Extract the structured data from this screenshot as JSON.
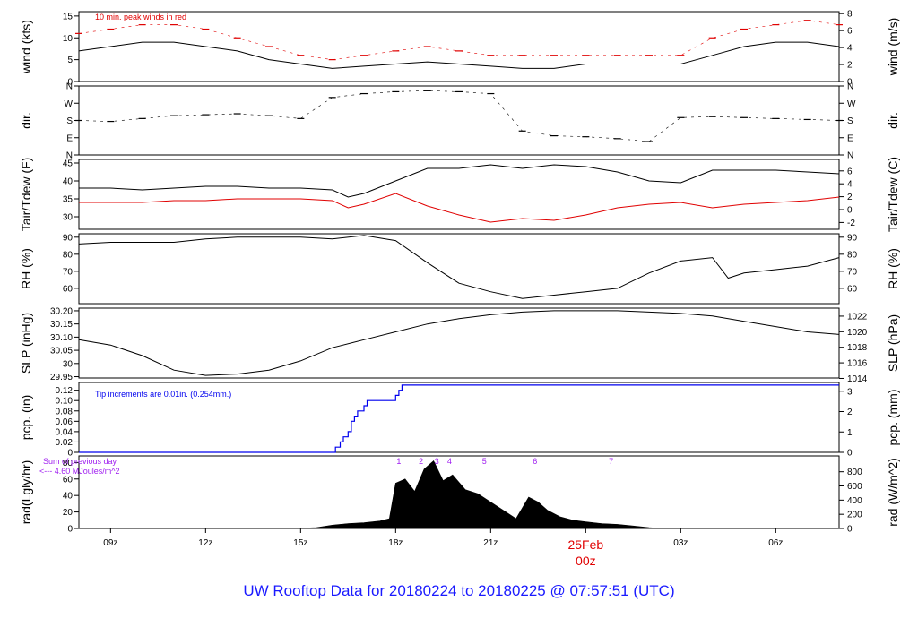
{
  "footer": {
    "title": "UW Rooftop Data for 20180224  to  20180225 @ 07:57:51  (UTC)"
  },
  "colors": {
    "black": "#000000",
    "red": "#e00000",
    "blue": "#0000ee",
    "purple": "#a020f0",
    "footer_blue": "#1a1aff"
  },
  "chart_data": {
    "type": "line",
    "x_axis": {
      "tick_labels": [
        "09z",
        "12z",
        "15z",
        "18z",
        "21z",
        "00z",
        "03z",
        "06z"
      ],
      "tick_hours": [
        9,
        12,
        15,
        18,
        21,
        24,
        27,
        30
      ],
      "range_hours": [
        8,
        32
      ],
      "date_marker": {
        "label": "25Feb",
        "sub": "00z"
      },
      "hour_unit": "hours UTC since 2018-02-24 00z"
    },
    "panels": [
      {
        "id": "wind",
        "ylabel": "wind (kts)",
        "ylabel_right": "wind (m/s)",
        "yticks": [
          0,
          5,
          10,
          15
        ],
        "yticks_right": [
          0,
          2,
          4,
          6,
          8
        ],
        "ylim": [
          0,
          16
        ],
        "right_scale": 0.5144,
        "annotation": "10 min. peak winds in red",
        "series": [
          {
            "color": "#000000",
            "x": [
              8,
              9,
              10,
              11,
              12,
              13,
              14,
              15,
              16,
              17,
              18,
              19,
              20,
              21,
              22,
              23,
              24,
              25,
              26,
              27,
              28,
              29,
              30,
              31,
              32
            ],
            "y": [
              7,
              8,
              9,
              9,
              8,
              7,
              5,
              4,
              3,
              3.5,
              4,
              4.5,
              4,
              3.5,
              3,
              3,
              4,
              4,
              4,
              4,
              6,
              8,
              9,
              9,
              8
            ]
          },
          {
            "color": "#e00000",
            "style": "dashes",
            "x": [
              8,
              9,
              10,
              11,
              12,
              13,
              14,
              15,
              16,
              17,
              18,
              19,
              20,
              21,
              22,
              23,
              24,
              25,
              26,
              27,
              28,
              29,
              30,
              31,
              32
            ],
            "y": [
              11,
              12,
              13,
              13,
              12,
              10,
              8,
              6,
              5,
              6,
              7,
              8,
              7,
              6,
              6,
              6,
              6,
              6,
              6,
              6,
              10,
              12,
              13,
              14,
              13
            ]
          }
        ]
      },
      {
        "id": "dir",
        "ylabel": "dir.",
        "ylabel_right": "dir.",
        "yticks": [
          "N",
          "E",
          "S",
          "W",
          "N"
        ],
        "yticks_right": [
          "N",
          "E",
          "S",
          "W",
          "N"
        ],
        "ylim": [
          0,
          360
        ],
        "series": [
          {
            "color": "#000000",
            "style": "dashes",
            "x": [
              8,
              9,
              10,
              11,
              12,
              13,
              14,
              15,
              16,
              17,
              18,
              19,
              20,
              21,
              22,
              23,
              24,
              25,
              26,
              27,
              28,
              29,
              30,
              31,
              32
            ],
            "y": [
              180,
              175,
              190,
              205,
              210,
              215,
              205,
              190,
              300,
              320,
              330,
              335,
              330,
              320,
              125,
              100,
              95,
              85,
              70,
              195,
              200,
              195,
              190,
              185,
              180
            ]
          }
        ]
      },
      {
        "id": "temp",
        "ylabel": "Tair/Tdew (F)",
        "ylabel_right": "Tair/Tdew (C)",
        "yticks": [
          30,
          35,
          40,
          45
        ],
        "yticks_right": [
          -2,
          0,
          2,
          4,
          6
        ],
        "ylim": [
          26.5,
          46
        ],
        "right_offset": 32,
        "right_scale": 0.5556,
        "series": [
          {
            "color": "#000000",
            "x": [
              8,
              9,
              10,
              11,
              12,
              13,
              14,
              15,
              16,
              16.5,
              17,
              18,
              19,
              20,
              21,
              22,
              23,
              24,
              25,
              26,
              27,
              28,
              29,
              30,
              31,
              32
            ],
            "y": [
              38,
              38,
              37.5,
              38,
              38.5,
              38.5,
              38,
              38,
              37.5,
              35.5,
              36.5,
              40,
              43.5,
              43.5,
              44.5,
              43.5,
              44.5,
              44,
              42.5,
              40,
              39.5,
              43,
              43,
              43,
              42.5,
              42
            ]
          },
          {
            "color": "#e00000",
            "x": [
              8,
              9,
              10,
              11,
              12,
              13,
              14,
              15,
              16,
              16.5,
              17,
              18,
              19,
              20,
              21,
              22,
              23,
              24,
              25,
              26,
              27,
              28,
              29,
              30,
              31,
              32
            ],
            "y": [
              34,
              34,
              34,
              34.5,
              34.5,
              35,
              35,
              35,
              34.5,
              32.5,
              33.5,
              36.5,
              33,
              30.5,
              28.5,
              29.5,
              29,
              30.5,
              32.5,
              33.5,
              34,
              32.5,
              33.5,
              34,
              34.5,
              35.5
            ]
          }
        ]
      },
      {
        "id": "rh",
        "ylabel": "RH (%)",
        "ylabel_right": "RH (%)",
        "yticks": [
          60,
          70,
          80,
          90
        ],
        "yticks_right": [
          60,
          70,
          80,
          90
        ],
        "ylim": [
          51,
          92
        ],
        "series": [
          {
            "color": "#000000",
            "x": [
              8,
              9,
              10,
              11,
              12,
              13,
              14,
              15,
              16,
              17,
              18,
              19,
              20,
              21,
              22,
              23,
              24,
              25,
              26,
              27,
              28,
              28.5,
              29,
              30,
              31,
              32
            ],
            "y": [
              86,
              87,
              87,
              87,
              89,
              90,
              90,
              90,
              89,
              91,
              88,
              75,
              63,
              58,
              54,
              56,
              58,
              60,
              69,
              76,
              78,
              66,
              69,
              71,
              73,
              78
            ]
          }
        ]
      },
      {
        "id": "slp",
        "ylabel": "SLP (inHg)",
        "ylabel_right": "SLP (hPa)",
        "yticks": [
          29.95,
          30.0,
          30.05,
          30.1,
          30.15,
          30.2
        ],
        "yticks_right": [
          1014,
          1016,
          1018,
          1020,
          1022
        ],
        "ylim": [
          29.945,
          30.21
        ],
        "right_scale": 33.8639,
        "series": [
          {
            "color": "#000000",
            "x": [
              8,
              9,
              10,
              11,
              12,
              13,
              14,
              15,
              16,
              17,
              18,
              19,
              20,
              21,
              22,
              23,
              24,
              25,
              26,
              27,
              28,
              29,
              30,
              31,
              32
            ],
            "y": [
              30.09,
              30.07,
              30.03,
              29.975,
              29.955,
              29.96,
              29.975,
              30.01,
              30.06,
              30.09,
              30.12,
              30.15,
              30.17,
              30.185,
              30.195,
              30.2,
              30.2,
              30.2,
              30.195,
              30.19,
              30.18,
              30.16,
              30.14,
              30.12,
              30.11
            ]
          }
        ]
      },
      {
        "id": "pcp",
        "ylabel": "pcp. (in)",
        "ylabel_right": "pcp. (mm)",
        "yticks": [
          0.0,
          0.02,
          0.04,
          0.06,
          0.08,
          0.1,
          0.12
        ],
        "yticks_right": [
          0,
          1,
          2,
          3
        ],
        "ylim": [
          0,
          0.135
        ],
        "right_scale": 25.4,
        "annotation": "Tip increments are 0.01in. (0.254mm.)",
        "series": [
          {
            "color": "#0000ee",
            "style": "step",
            "x": [
              8,
              16,
              16.1,
              16.25,
              16.35,
              16.5,
              16.6,
              16.7,
              16.8,
              17.0,
              17.1,
              17.2,
              17.3,
              17.9,
              18.0,
              18.1,
              18.2,
              32
            ],
            "y": [
              0,
              0,
              0.01,
              0.02,
              0.03,
              0.04,
              0.06,
              0.07,
              0.08,
              0.09,
              0.1,
              0.1,
              0.1,
              0.1,
              0.11,
              0.12,
              0.13,
              0.13
            ]
          }
        ]
      },
      {
        "id": "rad",
        "ylabel": "rad(Lgly/hr)",
        "ylabel_right": "rad (W/m^2)",
        "yticks": [
          0,
          20,
          40,
          60,
          80
        ],
        "yticks_right": [
          0,
          200,
          400,
          600,
          800
        ],
        "ylim": [
          0,
          88
        ],
        "right_scale": 11.63,
        "annotation": [
          "Sum of previous day",
          "<--- 4.60 MJoules/m^2"
        ],
        "hour_markers": [
          {
            "label": "1",
            "x": 18.1
          },
          {
            "label": "2",
            "x": 18.8
          },
          {
            "label": "3",
            "x": 19.3
          },
          {
            "label": "4",
            "x": 19.7
          },
          {
            "label": "5",
            "x": 20.8
          },
          {
            "label": "6",
            "x": 22.4
          },
          {
            "label": "7",
            "x": 24.8
          }
        ],
        "series": [
          {
            "color": "#000000",
            "style": "area",
            "x": [
              8,
              14.7,
              15.5,
              16.0,
              16.5,
              17.0,
              17.5,
              17.8,
              18.0,
              18.3,
              18.6,
              18.9,
              19.2,
              19.5,
              19.8,
              20.2,
              20.6,
              21.0,
              21.4,
              21.8,
              22.2,
              22.5,
              22.8,
              23.2,
              23.6,
              24.0,
              24.5,
              25.0,
              25.5,
              26.0,
              26.4,
              32
            ],
            "y": [
              0,
              0,
              1,
              4,
              6,
              7,
              9,
              12,
              55,
              60,
              45,
              72,
              82,
              58,
              65,
              47,
              42,
              32,
              22,
              12,
              38,
              32,
              22,
              14,
              10,
              8,
              6,
              5,
              3,
              1,
              0,
              0
            ]
          }
        ]
      }
    ]
  }
}
